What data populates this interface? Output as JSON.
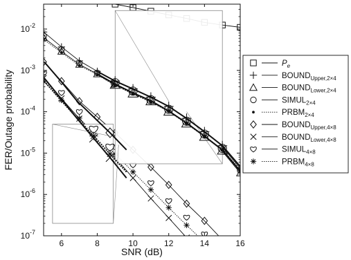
{
  "chart_data": {
    "type": "line",
    "xlabel": "SNR (dB)",
    "ylabel": "FER/Outage probability",
    "xlim": [
      5,
      16
    ],
    "ylim": [
      1e-07,
      0.04
    ],
    "yscale": "log",
    "grid": false,
    "legend_position": "right",
    "x_ticks": [
      6,
      8,
      10,
      12,
      14,
      16
    ],
    "y_ticks": [
      {
        "value": 1e-07,
        "label": "10",
        "exp": "-7"
      },
      {
        "value": 1e-06,
        "label": "10",
        "exp": "-6"
      },
      {
        "value": 1e-05,
        "label": "10",
        "exp": "-5"
      },
      {
        "value": 0.0001,
        "label": "10",
        "exp": "-4"
      },
      {
        "value": 0.001,
        "label": "10",
        "exp": "-3"
      },
      {
        "value": 0.01,
        "label": "10",
        "exp": "-2"
      }
    ],
    "series": [
      {
        "name": "P",
        "sub": "e",
        "marker": "square",
        "style": "solid",
        "x": [
          9,
          10,
          11,
          12,
          13,
          14,
          15,
          16
        ],
        "y": [
          0.04,
          0.033,
          0.027,
          0.022,
          0.018,
          0.0145,
          0.0125,
          0.011
        ]
      },
      {
        "name": "BOUND",
        "sub": "Upper,2×4",
        "marker": "plus",
        "style": "solid",
        "x": [
          5,
          6,
          7,
          8,
          9,
          10,
          11,
          12,
          13,
          14,
          15,
          16
        ],
        "y": [
          0.0085,
          0.0037,
          0.0017,
          0.00095,
          0.00055,
          0.00035,
          0.00022,
          0.00013,
          6.6e-05,
          3.1e-05,
          1.4e-05,
          4.3e-06
        ]
      },
      {
        "name": "BOUND",
        "sub": "Lower,2×4",
        "marker": "triangle",
        "style": "solid",
        "x": [
          5,
          6,
          7,
          8,
          9,
          10,
          11,
          12,
          13,
          14,
          15,
          16
        ],
        "y": [
          0.0062,
          0.0029,
          0.0014,
          0.00082,
          0.00046,
          0.00028,
          0.00018,
          0.0001,
          5.1e-05,
          2.4e-05,
          1.1e-05,
          3.3e-06
        ]
      },
      {
        "name": "SIMUL",
        "sub": "2×4",
        "marker": "circle",
        "style": "none",
        "x": [
          5,
          6,
          7,
          8,
          9,
          10,
          11,
          12,
          13,
          14,
          15,
          16
        ],
        "y": [
          0.0068,
          0.0032,
          0.0015,
          0.00087,
          0.0005,
          0.00031,
          0.00019,
          0.00011,
          5.6e-05,
          2.7e-05,
          1.2e-05,
          3.8e-06
        ]
      },
      {
        "name": "PRBM",
        "sub": "2×4",
        "marker": "dot",
        "style": "dotted",
        "x": [
          5,
          6,
          7,
          8,
          9,
          10,
          11,
          12,
          13,
          14,
          15,
          16
        ],
        "y": [
          0.0056,
          0.0027,
          0.0013,
          0.0008,
          0.00044,
          0.00027,
          0.00017,
          0.0001,
          5e-05,
          2.4e-05,
          1.1e-05,
          3.5e-06
        ]
      },
      {
        "name": "BOUND",
        "sub": "Upper,4×8",
        "marker": "diamond",
        "style": "solid",
        "x": [
          5,
          6,
          7,
          8,
          9,
          10,
          11,
          12,
          13,
          14,
          15
        ],
        "y": [
          0.0016,
          0.00055,
          0.00018,
          7.5e-05,
          3.1e-05,
          1.2e-05,
          4.6e-06,
          1.7e-06,
          6e-07,
          2.3e-07,
          8e-08
        ]
      },
      {
        "name": "BOUND",
        "sub": "Lower,4×8",
        "marker": "cross",
        "style": "solid",
        "x": [
          5,
          6,
          7,
          8,
          9,
          10,
          11,
          12,
          13,
          14
        ],
        "y": [
          0.00065,
          0.00021,
          6.8e-05,
          2.3e-05,
          7.8e-06,
          2.5e-06,
          8e-07,
          2.7e-07,
          9e-08,
          3e-08
        ]
      },
      {
        "name": "SIMUL",
        "sub": "4×8",
        "marker": "heart",
        "style": "none",
        "x": [
          5,
          6,
          7,
          8,
          9,
          10,
          11,
          12,
          13,
          14
        ],
        "y": [
          0.00085,
          0.00029,
          0.0001,
          3.8e-05,
          1.4e-05,
          5.2e-06,
          1.9e-06,
          7e-07,
          2.8e-07,
          1.1e-07
        ]
      },
      {
        "name": "PRBM",
        "sub": "4×8",
        "marker": "star",
        "style": "dotted",
        "x": [
          5,
          6,
          7,
          8,
          9,
          10,
          11,
          12,
          13,
          14
        ],
        "y": [
          0.00055,
          0.00019,
          7e-05,
          2.6e-05,
          9.5e-06,
          3.5e-06,
          1.3e-06,
          4.8e-07,
          1.8e-07,
          7e-08
        ]
      }
    ],
    "insets": [
      {
        "box_x": [
          9,
          15
        ],
        "box_y": [
          5.5e-06,
          0.028
        ],
        "source_x": [
          12,
          13
        ],
        "source_y": [
          0.0001,
          0.00018
        ],
        "view_x": [
          9,
          15
        ],
        "view_y": [
          5e-06,
          0.03
        ],
        "series_refs": [
          1,
          2,
          3,
          4
        ]
      },
      {
        "box_x": [
          5.5,
          8.9
        ],
        "box_y": [
          2e-07,
          5e-05
        ],
        "source_x": [
          8.7,
          9.2
        ],
        "source_y": [
          1.6e-05,
          2.6e-05
        ],
        "view_x": [
          5.5,
          9.2
        ],
        "view_y": [
          2e-07,
          5e-05
        ],
        "series_refs": [
          5,
          6,
          7,
          8
        ]
      }
    ]
  }
}
